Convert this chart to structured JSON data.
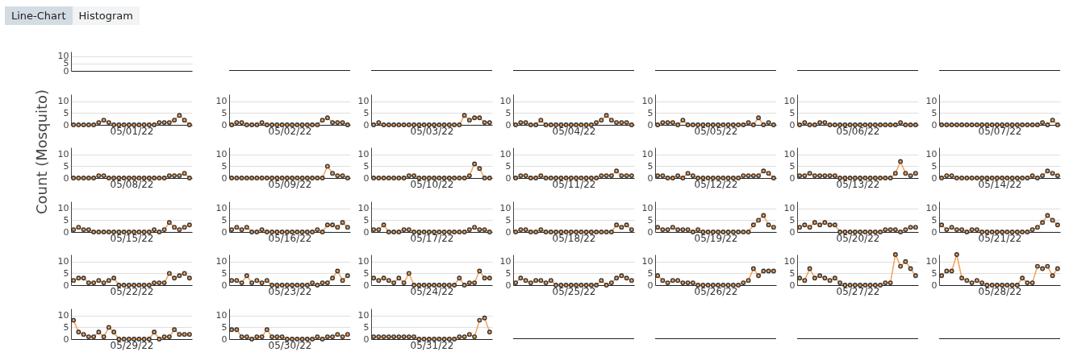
{
  "chart_data": [
    {
      "type": "line",
      "annotations": [
        "Line-Chart",
        "Histogram"
      ],
      "categories": [
        null,
        null,
        null,
        null,
        null,
        null,
        null,
        null,
        null,
        null,
        null,
        null,
        null,
        null,
        null,
        null,
        null,
        null,
        null,
        null,
        null,
        null,
        null,
        null
      ],
      "values": [
        null,
        null,
        null,
        null,
        null,
        null,
        null,
        null,
        null,
        null,
        null,
        null,
        null,
        null,
        null,
        null,
        null,
        null,
        null,
        null,
        null,
        null,
        null,
        null
      ],
      "ylim": [
        0,
        13
      ],
      "yticks": [
        0,
        5,
        10
      ],
      "grid": "y",
      "tick_labels": "y"
    },
    {
      "type": "other"
    },
    {
      "type": "line",
      "xlabel": "05/01/22",
      "color": "#f4a259",
      "marker": "circle",
      "categories": [
        null,
        null,
        null,
        null,
        null,
        null,
        null,
        null,
        null,
        null,
        null,
        null,
        null,
        null,
        null,
        null,
        null,
        null,
        null,
        null,
        null,
        null,
        null,
        null
      ],
      "values": [
        0,
        0,
        0,
        0,
        0,
        1,
        2,
        1,
        0,
        0,
        0,
        0,
        0,
        0,
        0,
        0,
        0,
        1,
        1,
        1,
        2,
        4,
        2,
        0
      ],
      "ylim": [
        0,
        13
      ],
      "yticks": [
        0,
        5,
        10
      ],
      "grid": "y",
      "tick_labels": "y"
    },
    {
      "type": "line",
      "xlabel": "05/02/22",
      "color": "#f4a259",
      "marker": "circle",
      "categories": [
        null,
        null,
        null,
        null,
        null,
        null,
        null,
        null,
        null,
        null,
        null,
        null,
        null,
        null,
        null,
        null,
        null,
        null,
        null,
        null,
        null,
        null,
        null,
        null
      ],
      "values": [
        0,
        1,
        1,
        0,
        0,
        0,
        1,
        0,
        0,
        0,
        0,
        0,
        0,
        0,
        0,
        0,
        0,
        0,
        2,
        3,
        1,
        1,
        1,
        0
      ],
      "ylim": [
        0,
        13
      ],
      "yticks": [
        0,
        5,
        10
      ],
      "grid": "y",
      "tick_labels": "y"
    },
    {
      "type": "line",
      "xlabel": "05/03/22",
      "color": "#f4a259",
      "marker": "circle",
      "categories": [
        null,
        null,
        null,
        null,
        null,
        null,
        null,
        null,
        null,
        null,
        null,
        null,
        null,
        null,
        null,
        null,
        null,
        null,
        null,
        null,
        null,
        null,
        null,
        null
      ],
      "values": [
        0,
        1,
        0,
        0,
        0,
        0,
        0,
        0,
        0,
        0,
        0,
        0,
        0,
        0,
        0,
        0,
        0,
        0,
        4,
        2,
        3,
        3,
        1,
        1
      ],
      "ylim": [
        0,
        13
      ],
      "yticks": [
        0,
        5,
        10
      ],
      "grid": "y",
      "tick_labels": "y"
    },
    {
      "type": "line",
      "xlabel": "05/04/22",
      "color": "#f4a259",
      "marker": "circle",
      "categories": [
        null,
        null,
        null,
        null,
        null,
        null,
        null,
        null,
        null,
        null,
        null,
        null,
        null,
        null,
        null,
        null,
        null,
        null,
        null,
        null,
        null,
        null,
        null,
        null
      ],
      "values": [
        0,
        1,
        1,
        0,
        0,
        2,
        0,
        0,
        0,
        0,
        0,
        0,
        0,
        0,
        0,
        0,
        1,
        2,
        4,
        2,
        1,
        1,
        1,
        0
      ],
      "ylim": [
        0,
        13
      ],
      "yticks": [
        0,
        5,
        10
      ],
      "grid": "y",
      "tick_labels": "y"
    },
    {
      "type": "line",
      "xlabel": "05/05/22",
      "color": "#f4a259",
      "marker": "circle",
      "categories": [
        null,
        null,
        null,
        null,
        null,
        null,
        null,
        null,
        null,
        null,
        null,
        null,
        null,
        null,
        null,
        null,
        null,
        null,
        null,
        null,
        null,
        null,
        null,
        null
      ],
      "values": [
        0,
        1,
        1,
        1,
        0,
        2,
        0,
        0,
        0,
        0,
        0,
        0,
        0,
        0,
        0,
        0,
        0,
        0,
        1,
        0,
        3,
        0,
        1,
        0
      ],
      "ylim": [
        0,
        13
      ],
      "yticks": [
        0,
        5,
        10
      ],
      "grid": "y",
      "tick_labels": "y"
    },
    {
      "type": "line",
      "xlabel": "05/06/22",
      "color": "#f4a259",
      "marker": "circle",
      "categories": [
        null,
        null,
        null,
        null,
        null,
        null,
        null,
        null,
        null,
        null,
        null,
        null,
        null,
        null,
        null,
        null,
        null,
        null,
        null,
        null,
        null,
        null,
        null,
        null
      ],
      "values": [
        0,
        1,
        0,
        0,
        1,
        1,
        0,
        0,
        0,
        0,
        0,
        0,
        0,
        0,
        0,
        0,
        0,
        0,
        0,
        0,
        1,
        0,
        0,
        0
      ],
      "ylim": [
        0,
        13
      ],
      "yticks": [
        0,
        5,
        10
      ],
      "grid": "y",
      "tick_labels": "y"
    },
    {
      "type": "line",
      "xlabel": "05/07/22",
      "color": "#f4a259",
      "marker": "circle",
      "categories": [
        null,
        null,
        null,
        null,
        null,
        null,
        null,
        null,
        null,
        null,
        null,
        null,
        null,
        null,
        null,
        null,
        null,
        null,
        null,
        null,
        null,
        null,
        null,
        null
      ],
      "values": [
        0,
        0,
        0,
        0,
        0,
        0,
        0,
        0,
        0,
        0,
        0,
        0,
        0,
        0,
        0,
        0,
        0,
        0,
        0,
        0,
        1,
        0,
        2,
        0
      ],
      "ylim": [
        0,
        13
      ],
      "yticks": [
        0,
        5,
        10
      ],
      "grid": "y",
      "tick_labels": "y"
    },
    {
      "type": "line",
      "xlabel": "05/08/22",
      "ylabel": "Count (Mosquito)",
      "color": "#f4a259",
      "marker": "circle",
      "categories": [
        null,
        null,
        null,
        null,
        null,
        null,
        null,
        null,
        null,
        null,
        null,
        null,
        null,
        null,
        null,
        null,
        null,
        null,
        null,
        null,
        null,
        null,
        null,
        null
      ],
      "values": [
        0,
        0,
        0,
        0,
        0,
        1,
        1,
        0,
        0,
        0,
        0,
        0,
        0,
        0,
        0,
        0,
        0,
        0,
        0,
        1,
        1,
        1,
        2,
        0
      ],
      "ylim": [
        0,
        13
      ],
      "yticks": [
        0,
        5,
        10
      ],
      "grid": "y",
      "tick_labels": "y"
    },
    {
      "type": "line",
      "xlabel": "05/09/22",
      "color": "#f4a259",
      "marker": "circle",
      "categories": [
        null,
        null,
        null,
        null,
        null,
        null,
        null,
        null,
        null,
        null,
        null,
        null,
        null,
        null,
        null,
        null,
        null,
        null,
        null,
        null,
        null,
        null,
        null,
        null
      ],
      "values": [
        0,
        0,
        0,
        0,
        0,
        0,
        0,
        0,
        0,
        0,
        0,
        0,
        0,
        0,
        0,
        0,
        0,
        0,
        0,
        5,
        2,
        1,
        1,
        0
      ],
      "ylim": [
        0,
        13
      ],
      "yticks": [
        0,
        5,
        10
      ],
      "grid": "y",
      "tick_labels": "y"
    },
    {
      "type": "line",
      "xlabel": "05/10/22",
      "color": "#f4a259",
      "marker": "circle",
      "categories": [
        null,
        null,
        null,
        null,
        null,
        null,
        null,
        null,
        null,
        null,
        null,
        null,
        null,
        null,
        null,
        null,
        null,
        null,
        null,
        null,
        null,
        null,
        null,
        null
      ],
      "values": [
        0,
        0,
        0,
        0,
        0,
        0,
        0,
        1,
        1,
        0,
        0,
        0,
        0,
        0,
        0,
        0,
        0,
        0,
        0,
        1,
        6,
        4,
        0,
        0
      ],
      "ylim": [
        0,
        13
      ],
      "yticks": [
        0,
        5,
        10
      ],
      "grid": "y",
      "tick_labels": "y"
    },
    {
      "type": "line",
      "xlabel": "05/11/22",
      "color": "#f4a259",
      "marker": "circle",
      "categories": [
        null,
        null,
        null,
        null,
        null,
        null,
        null,
        null,
        null,
        null,
        null,
        null,
        null,
        null,
        null,
        null,
        null,
        null,
        null,
        null,
        null,
        null,
        null,
        null
      ],
      "values": [
        0,
        1,
        1,
        0,
        0,
        1,
        0,
        0,
        0,
        0,
        0,
        0,
        0,
        0,
        0,
        0,
        0,
        1,
        1,
        1,
        3,
        1,
        1,
        1
      ],
      "ylim": [
        0,
        13
      ],
      "yticks": [
        0,
        5,
        10
      ],
      "grid": "y",
      "tick_labels": "y"
    },
    {
      "type": "line",
      "xlabel": "05/12/22",
      "color": "#f4a259",
      "marker": "circle",
      "categories": [
        null,
        null,
        null,
        null,
        null,
        null,
        null,
        null,
        null,
        null,
        null,
        null,
        null,
        null,
        null,
        null,
        null,
        null,
        null,
        null,
        null,
        null,
        null,
        null
      ],
      "values": [
        1,
        1,
        0,
        0,
        1,
        0,
        2,
        1,
        0,
        0,
        0,
        0,
        0,
        0,
        0,
        0,
        0,
        1,
        1,
        1,
        1,
        3,
        2,
        0
      ],
      "ylim": [
        0,
        13
      ],
      "yticks": [
        0,
        5,
        10
      ],
      "grid": "y",
      "tick_labels": "y"
    },
    {
      "type": "line",
      "xlabel": "05/13/22",
      "color": "#f4a259",
      "marker": "circle",
      "categories": [
        null,
        null,
        null,
        null,
        null,
        null,
        null,
        null,
        null,
        null,
        null,
        null,
        null,
        null,
        null,
        null,
        null,
        null,
        null,
        null,
        null,
        null,
        null,
        null
      ],
      "values": [
        1,
        1,
        2,
        1,
        1,
        1,
        1,
        1,
        0,
        0,
        0,
        0,
        0,
        0,
        0,
        0,
        0,
        0,
        0,
        2,
        7,
        2,
        1,
        2
      ],
      "ylim": [
        0,
        13
      ],
      "yticks": [
        0,
        5,
        10
      ],
      "grid": "y",
      "tick_labels": "y"
    },
    {
      "type": "line",
      "xlabel": "05/14/22",
      "color": "#f4a259",
      "marker": "circle",
      "categories": [
        null,
        null,
        null,
        null,
        null,
        null,
        null,
        null,
        null,
        null,
        null,
        null,
        null,
        null,
        null,
        null,
        null,
        null,
        null,
        null,
        null,
        null,
        null,
        null
      ],
      "values": [
        0,
        1,
        1,
        0,
        0,
        0,
        0,
        0,
        0,
        0,
        0,
        0,
        0,
        0,
        0,
        0,
        0,
        0,
        1,
        0,
        1,
        3,
        2,
        1
      ],
      "ylim": [
        0,
        13
      ],
      "yticks": [
        0,
        5,
        10
      ],
      "grid": "y",
      "tick_labels": "y"
    },
    {
      "type": "line",
      "xlabel": "05/15/22",
      "color": "#f4a259",
      "marker": "circle",
      "categories": [
        null,
        null,
        null,
        null,
        null,
        null,
        null,
        null,
        null,
        null,
        null,
        null,
        null,
        null,
        null,
        null,
        null,
        null,
        null,
        null,
        null,
        null,
        null,
        null
      ],
      "values": [
        1,
        2,
        1,
        1,
        0,
        0,
        0,
        0,
        0,
        0,
        0,
        0,
        0,
        0,
        0,
        0,
        1,
        0,
        1,
        4,
        2,
        1,
        2,
        3
      ],
      "ylim": [
        0,
        13
      ],
      "yticks": [
        0,
        5,
        10
      ],
      "grid": "y",
      "tick_labels": "y"
    },
    {
      "type": "line",
      "xlabel": "05/16/22",
      "color": "#f4a259",
      "marker": "circle",
      "categories": [
        null,
        null,
        null,
        null,
        null,
        null,
        null,
        null,
        null,
        null,
        null,
        null,
        null,
        null,
        null,
        null,
        null,
        null,
        null,
        null,
        null,
        null,
        null,
        null
      ],
      "values": [
        1,
        2,
        1,
        2,
        0,
        0,
        1,
        0,
        0,
        0,
        0,
        0,
        0,
        0,
        0,
        0,
        0,
        1,
        0,
        3,
        3,
        2,
        4,
        2
      ],
      "ylim": [
        0,
        13
      ],
      "yticks": [
        0,
        5,
        10
      ],
      "grid": "y",
      "tick_labels": "y"
    },
    {
      "type": "line",
      "xlabel": "05/17/22",
      "color": "#f4a259",
      "marker": "circle",
      "categories": [
        null,
        null,
        null,
        null,
        null,
        null,
        null,
        null,
        null,
        null,
        null,
        null,
        null,
        null,
        null,
        null,
        null,
        null,
        null,
        null,
        null,
        null,
        null,
        null
      ],
      "values": [
        1,
        1,
        3,
        0,
        0,
        0,
        1,
        1,
        0,
        0,
        0,
        0,
        0,
        0,
        0,
        0,
        0,
        0,
        0,
        1,
        2,
        1,
        1,
        0
      ],
      "ylim": [
        0,
        13
      ],
      "yticks": [
        0,
        5,
        10
      ],
      "grid": "y",
      "tick_labels": "y"
    },
    {
      "type": "line",
      "xlabel": "05/18/22",
      "color": "#f4a259",
      "marker": "circle",
      "categories": [
        null,
        null,
        null,
        null,
        null,
        null,
        null,
        null,
        null,
        null,
        null,
        null,
        null,
        null,
        null,
        null,
        null,
        null,
        null,
        null,
        null,
        null,
        null,
        null
      ],
      "values": [
        0,
        1,
        1,
        0,
        0,
        1,
        0,
        0,
        0,
        0,
        0,
        0,
        0,
        0,
        0,
        0,
        0,
        0,
        0,
        0,
        3,
        2,
        3,
        1
      ],
      "ylim": [
        0,
        13
      ],
      "yticks": [
        0,
        5,
        10
      ],
      "grid": "y",
      "tick_labels": "y"
    },
    {
      "type": "line",
      "xlabel": "05/19/22",
      "color": "#f4a259",
      "marker": "circle",
      "categories": [
        null,
        null,
        null,
        null,
        null,
        null,
        null,
        null,
        null,
        null,
        null,
        null,
        null,
        null,
        null,
        null,
        null,
        null,
        null,
        null,
        null,
        null,
        null,
        null
      ],
      "values": [
        2,
        1,
        1,
        2,
        1,
        1,
        1,
        0,
        1,
        0,
        0,
        0,
        0,
        0,
        0,
        0,
        0,
        0,
        0,
        3,
        5,
        7,
        3,
        2
      ],
      "ylim": [
        0,
        13
      ],
      "yticks": [
        0,
        5,
        10
      ],
      "grid": "y",
      "tick_labels": "y"
    },
    {
      "type": "line",
      "xlabel": "05/20/22",
      "color": "#f4a259",
      "marker": "circle",
      "categories": [
        null,
        null,
        null,
        null,
        null,
        null,
        null,
        null,
        null,
        null,
        null,
        null,
        null,
        null,
        null,
        null,
        null,
        null,
        null,
        null,
        null,
        null,
        null,
        null
      ],
      "values": [
        2,
        3,
        2,
        4,
        3,
        4,
        3,
        3,
        0,
        0,
        0,
        0,
        0,
        0,
        0,
        0,
        0,
        1,
        1,
        1,
        0,
        1,
        2,
        2
      ],
      "ylim": [
        0,
        13
      ],
      "yticks": [
        0,
        5,
        10
      ],
      "grid": "y",
      "tick_labels": "y"
    },
    {
      "type": "line",
      "xlabel": "05/21/22",
      "color": "#f4a259",
      "marker": "circle",
      "categories": [
        null,
        null,
        null,
        null,
        null,
        null,
        null,
        null,
        null,
        null,
        null,
        null,
        null,
        null,
        null,
        null,
        null,
        null,
        null,
        null,
        null,
        null,
        null,
        null
      ],
      "values": [
        3,
        1,
        2,
        1,
        1,
        0,
        1,
        1,
        0,
        0,
        0,
        0,
        0,
        0,
        0,
        0,
        0,
        0,
        1,
        2,
        4,
        7,
        5,
        3
      ],
      "ylim": [
        0,
        13
      ],
      "yticks": [
        0,
        5,
        10
      ],
      "grid": "y",
      "tick_labels": "y"
    },
    {
      "type": "line",
      "xlabel": "05/22/22",
      "color": "#f4a259",
      "marker": "circle",
      "categories": [
        null,
        null,
        null,
        null,
        null,
        null,
        null,
        null,
        null,
        null,
        null,
        null,
        null,
        null,
        null,
        null,
        null,
        null,
        null,
        null,
        null,
        null,
        null,
        null
      ],
      "values": [
        2,
        3,
        3,
        1,
        1,
        2,
        1,
        2,
        3,
        0,
        0,
        0,
        0,
        0,
        0,
        0,
        1,
        1,
        1,
        5,
        3,
        4,
        5,
        3
      ],
      "ylim": [
        0,
        13
      ],
      "yticks": [
        0,
        5,
        10
      ],
      "grid": "y",
      "tick_labels": "y"
    },
    {
      "type": "line",
      "xlabel": "05/23/22",
      "color": "#f4a259",
      "marker": "circle",
      "categories": [
        null,
        null,
        null,
        null,
        null,
        null,
        null,
        null,
        null,
        null,
        null,
        null,
        null,
        null,
        null,
        null,
        null,
        null,
        null,
        null,
        null,
        null,
        null,
        null
      ],
      "values": [
        2,
        2,
        1,
        4,
        1,
        2,
        1,
        2,
        0,
        0,
        0,
        0,
        0,
        0,
        0,
        0,
        1,
        0,
        1,
        1,
        3,
        6,
        2,
        4
      ],
      "ylim": [
        0,
        13
      ],
      "yticks": [
        0,
        5,
        10
      ],
      "grid": "y",
      "tick_labels": "y"
    },
    {
      "type": "line",
      "xlabel": "05/24/22",
      "color": "#f4a259",
      "marker": "circle",
      "categories": [
        null,
        null,
        null,
        null,
        null,
        null,
        null,
        null,
        null,
        null,
        null,
        null,
        null,
        null,
        null,
        null,
        null,
        null,
        null,
        null,
        null,
        null,
        null,
        null
      ],
      "values": [
        3,
        2,
        3,
        2,
        1,
        3,
        1,
        5,
        0,
        0,
        0,
        0,
        0,
        0,
        0,
        0,
        0,
        3,
        0,
        1,
        1,
        6,
        3,
        3
      ],
      "ylim": [
        0,
        13
      ],
      "yticks": [
        0,
        5,
        10
      ],
      "grid": "y",
      "tick_labels": "y"
    },
    {
      "type": "line",
      "xlabel": "05/25/22",
      "color": "#f4a259",
      "marker": "circle",
      "categories": [
        null,
        null,
        null,
        null,
        null,
        null,
        null,
        null,
        null,
        null,
        null,
        null,
        null,
        null,
        null,
        null,
        null,
        null,
        null,
        null,
        null,
        null,
        null,
        null
      ],
      "values": [
        1,
        3,
        2,
        1,
        2,
        2,
        1,
        2,
        0,
        0,
        0,
        0,
        0,
        0,
        0,
        0,
        0,
        2,
        0,
        1,
        3,
        4,
        3,
        2
      ],
      "ylim": [
        0,
        13
      ],
      "yticks": [
        0,
        5,
        10
      ],
      "grid": "y",
      "tick_labels": "y"
    },
    {
      "type": "line",
      "xlabel": "05/26/22",
      "color": "#f4a259",
      "marker": "circle",
      "categories": [
        null,
        null,
        null,
        null,
        null,
        null,
        null,
        null,
        null,
        null,
        null,
        null,
        null,
        null,
        null,
        null,
        null,
        null,
        null,
        null,
        null,
        null,
        null,
        null
      ],
      "values": [
        4,
        2,
        1,
        2,
        2,
        1,
        1,
        1,
        0,
        0,
        0,
        0,
        0,
        0,
        0,
        0,
        0,
        1,
        2,
        7,
        4,
        6,
        6,
        6
      ],
      "ylim": [
        0,
        13
      ],
      "yticks": [
        0,
        5,
        10
      ],
      "grid": "y",
      "tick_labels": "y"
    },
    {
      "type": "line",
      "xlabel": "05/27/22",
      "color": "#f4a259",
      "marker": "circle",
      "categories": [
        null,
        null,
        null,
        null,
        null,
        null,
        null,
        null,
        null,
        null,
        null,
        null,
        null,
        null,
        null,
        null,
        null,
        null,
        null,
        null,
        null,
        null,
        null,
        null
      ],
      "values": [
        3,
        2,
        7,
        3,
        4,
        3,
        2,
        3,
        1,
        0,
        0,
        0,
        0,
        0,
        0,
        0,
        0,
        1,
        1,
        13,
        8,
        10,
        7,
        4
      ],
      "ylim": [
        0,
        13
      ],
      "yticks": [
        0,
        5,
        10
      ],
      "grid": "y",
      "tick_labels": "y"
    },
    {
      "type": "line",
      "xlabel": "05/28/22",
      "color": "#f4a259",
      "marker": "circle",
      "categories": [
        null,
        null,
        null,
        null,
        null,
        null,
        null,
        null,
        null,
        null,
        null,
        null,
        null,
        null,
        null,
        null,
        null,
        null,
        null,
        null,
        null,
        null,
        null,
        null
      ],
      "values": [
        4,
        6,
        6,
        13,
        3,
        2,
        1,
        2,
        1,
        0,
        0,
        0,
        0,
        0,
        0,
        0,
        3,
        1,
        1,
        8,
        7,
        8,
        4,
        7
      ],
      "ylim": [
        0,
        13
      ],
      "yticks": [
        0,
        5,
        10
      ],
      "grid": "y",
      "tick_labels": "y"
    },
    {
      "type": "line",
      "xlabel": "05/29/22",
      "color": "#f4a259",
      "marker": "circle",
      "categories": [
        null,
        null,
        null,
        null,
        null,
        null,
        null,
        null,
        null,
        null,
        null,
        null,
        null,
        null,
        null,
        null,
        null,
        null,
        null,
        null,
        null,
        null,
        null,
        null
      ],
      "values": [
        8,
        3,
        2,
        1,
        1,
        3,
        1,
        5,
        3,
        0,
        0,
        0,
        0,
        0,
        0,
        0,
        3,
        0,
        1,
        1,
        4,
        2,
        2,
        2
      ],
      "ylim": [
        0,
        13
      ],
      "yticks": [
        0,
        5,
        10
      ],
      "grid": "y",
      "tick_labels": "y"
    },
    {
      "type": "line",
      "xlabel": "05/30/22",
      "color": "#f4a259",
      "marker": "circle",
      "categories": [
        null,
        null,
        null,
        null,
        null,
        null,
        null,
        null,
        null,
        null,
        null,
        null,
        null,
        null,
        null,
        null,
        null,
        null,
        null,
        null,
        null,
        null,
        null,
        null
      ],
      "values": [
        4,
        4,
        1,
        1,
        0,
        1,
        1,
        4,
        1,
        1,
        1,
        0,
        0,
        0,
        0,
        0,
        0,
        1,
        0,
        1,
        1,
        2,
        1,
        2
      ],
      "ylim": [
        0,
        13
      ],
      "yticks": [
        0,
        5,
        10
      ],
      "grid": "y",
      "tick_labels": "y"
    },
    {
      "type": "line",
      "xlabel": "05/31/22",
      "color": "#f4a259",
      "marker": "circle",
      "categories": [
        null,
        null,
        null,
        null,
        null,
        null,
        null,
        null,
        null,
        null,
        null,
        null,
        null,
        null,
        null,
        null,
        null,
        null,
        null,
        null,
        null,
        null,
        null,
        null
      ],
      "values": [
        1,
        1,
        1,
        1,
        1,
        1,
        1,
        1,
        1,
        0,
        0,
        0,
        0,
        0,
        0,
        0,
        0,
        1,
        1,
        2,
        1,
        8,
        9,
        3
      ],
      "ylim": [
        0,
        13
      ],
      "yticks": [
        0,
        5,
        10
      ],
      "grid": "y",
      "tick_labels": "y"
    },
    {
      "type": "other"
    }
  ]
}
